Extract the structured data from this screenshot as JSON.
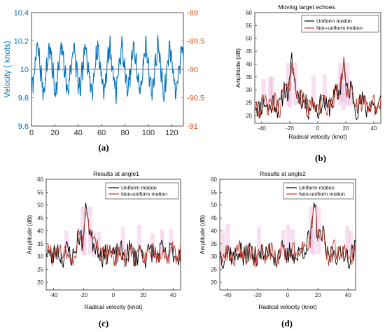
{
  "chart_data": [
    {
      "id": "a",
      "type": "line",
      "caption": "(a)",
      "title": "",
      "xlabel": "",
      "ylabel": "Velocity ( knots)",
      "xlim": [
        0,
        130
      ],
      "ylim": [
        9.6,
        10.4
      ],
      "y2lim": [
        -91,
        -89
      ],
      "xticks": [
        "0",
        "20",
        "40",
        "60",
        "80",
        "100",
        "120"
      ],
      "yticks": [
        "9.6",
        "9.8",
        "10",
        "10.2",
        "10.4"
      ],
      "y2ticks": [
        "-89",
        "-89.5",
        "-90",
        "-90.5",
        "-91"
      ],
      "grid": false,
      "colors": {
        "left": "#0072bd",
        "right": "#d95319"
      },
      "series": [
        {
          "axis": "left",
          "color": "#0072bd",
          "period": 10.3,
          "center": 10.0,
          "amplitude": 0.17,
          "noise": 0.06
        },
        {
          "axis": "right",
          "color": "#d95319",
          "constant": -90
        }
      ]
    },
    {
      "id": "b",
      "type": "line",
      "caption": "(b)",
      "title": "Moving target echoes",
      "xlabel": "Radical velocity (knot)",
      "ylabel": "Amplitude (dB)",
      "xlim": [
        -45,
        45
      ],
      "ylim": [
        17,
        60
      ],
      "xticks": [
        "-40",
        "-20",
        "0",
        "20",
        "40"
      ],
      "yticks": [
        "20",
        "25",
        "30",
        "35",
        "40",
        "45",
        "50",
        "55",
        "60"
      ],
      "grid": false,
      "legend_position": "top-right",
      "series": [
        {
          "name": "Uniform motion",
          "color": "#000000"
        },
        {
          "name": "Non-uniform motion",
          "color": "#c0392b"
        }
      ],
      "peaks": [
        {
          "x": -18.5,
          "uniform": 42.5,
          "nonuniform": 42
        },
        {
          "x": 18.5,
          "uniform": 42.5,
          "nonuniform": 42
        }
      ],
      "baseline_db": 24
    },
    {
      "id": "c",
      "type": "line",
      "caption": "(c)",
      "title": "Results at angle1",
      "xlabel": "Radical velocity (knot)",
      "ylabel": "Amplitude (dB)",
      "xlim": [
        -45,
        45
      ],
      "ylim": [
        17,
        60
      ],
      "xticks": [
        "-40",
        "-20",
        "0",
        "20",
        "40"
      ],
      "yticks": [
        "20",
        "25",
        "30",
        "35",
        "40",
        "45",
        "50",
        "55",
        "60"
      ],
      "grid": false,
      "legend_position": "top-right",
      "series": [
        {
          "name": "Uniform motion",
          "color": "#000000"
        },
        {
          "name": "Non-uniform motion",
          "color": "#c0392b"
        }
      ],
      "peaks": [
        {
          "x": -18,
          "uniform": 51.5,
          "nonuniform": 50
        }
      ],
      "baseline_db": 31
    },
    {
      "id": "d",
      "type": "line",
      "caption": "(d)",
      "title": "Results at angle2",
      "xlabel": "Radical velocity (knot)",
      "ylabel": "Amplitude (dB)",
      "xlim": [
        -45,
        45
      ],
      "ylim": [
        17,
        60
      ],
      "xticks": [
        "-40",
        "-20",
        "0",
        "20",
        "40"
      ],
      "yticks": [
        "20",
        "25",
        "30",
        "35",
        "40",
        "45",
        "50",
        "55",
        "60"
      ],
      "grid": false,
      "legend_position": "top-right",
      "series": [
        {
          "name": "Uniform motion",
          "color": "#000000"
        },
        {
          "name": "Non-uniform motion",
          "color": "#c0392b"
        }
      ],
      "peaks": [
        {
          "x": 18,
          "uniform": 51.5,
          "nonuniform": 50
        }
      ],
      "baseline_db": 31
    }
  ]
}
